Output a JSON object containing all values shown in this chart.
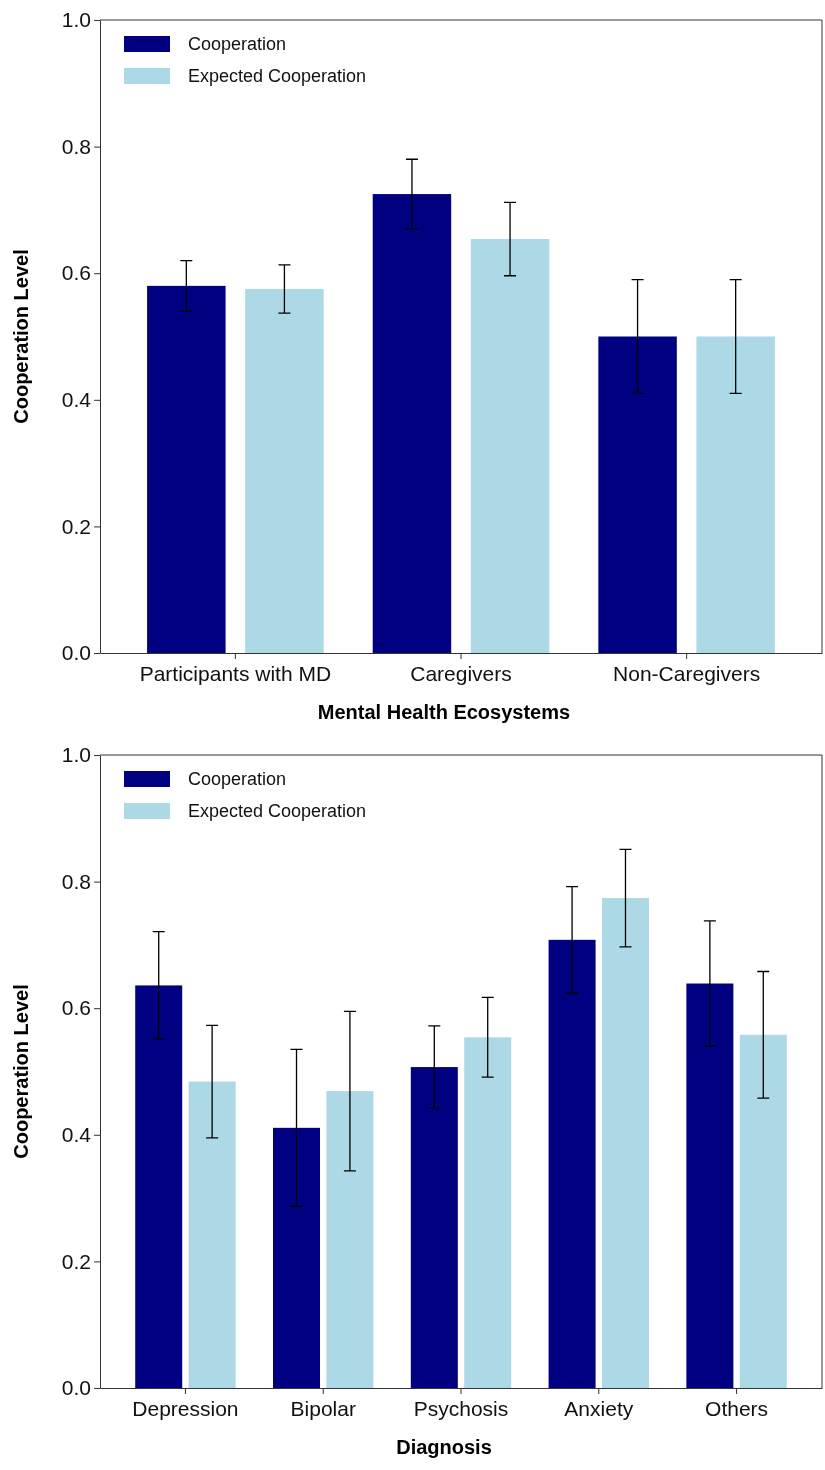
{
  "chart_data": [
    {
      "type": "bar",
      "xlabel": "Mental Health Ecosystems",
      "ylabel": "Cooperation Level",
      "categories": [
        "Participants with MD",
        "Caregivers",
        "Non-Caregivers"
      ],
      "ylim": [
        0,
        1
      ],
      "yticks": [
        {
          "value": 0,
          "label": "0.0"
        },
        {
          "value": 0.2,
          "label": "0.2"
        },
        {
          "value": 0.4,
          "label": "0.4"
        },
        {
          "value": 0.6,
          "label": "0.6"
        },
        {
          "value": 0.8,
          "label": "0.8"
        },
        {
          "value": 1,
          "label": "1.0"
        }
      ],
      "legend": "top left",
      "grid": false,
      "series": [
        {
          "name": "Cooperation",
          "color": "#000080",
          "values": [
            0.58,
            0.725,
            0.5
          ],
          "errors": [
            0.04,
            0.055,
            0.09
          ]
        },
        {
          "name": "Expected Cooperation",
          "color": "#add8e6",
          "values": [
            0.575,
            0.654,
            0.5
          ],
          "errors": [
            0.038,
            0.058,
            0.09
          ]
        }
      ]
    },
    {
      "type": "bar",
      "xlabel": "Diagnosis",
      "ylabel": "Cooperation Level",
      "categories": [
        "Depression",
        "Bipolar",
        "Psychosis",
        "Anxiety",
        "Others"
      ],
      "ylim": [
        0,
        1
      ],
      "yticks": [
        {
          "value": 0,
          "label": "0.0"
        },
        {
          "value": 0.2,
          "label": "0.2"
        },
        {
          "value": 0.4,
          "label": "0.4"
        },
        {
          "value": 0.6,
          "label": "0.6"
        },
        {
          "value": 0.8,
          "label": "0.8"
        },
        {
          "value": 1,
          "label": "1.0"
        }
      ],
      "legend": "top left",
      "grid": false,
      "series": [
        {
          "name": "Cooperation",
          "color": "#000080",
          "values": [
            0.636,
            0.411,
            0.507,
            0.708,
            0.639
          ],
          "errors": [
            0.085,
            0.124,
            0.065,
            0.084,
            0.099
          ]
        },
        {
          "name": "Expected Cooperation",
          "color": "#add8e6",
          "values": [
            0.484,
            0.469,
            0.554,
            0.774,
            0.558
          ],
          "errors": [
            0.089,
            0.126,
            0.063,
            0.077,
            0.1
          ]
        }
      ]
    }
  ]
}
